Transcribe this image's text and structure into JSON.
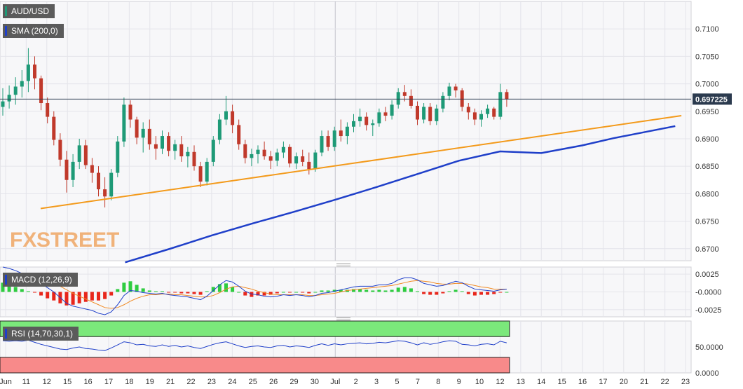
{
  "tags": {
    "symbol": "AUD/USD",
    "sma": "SMA (200,0)",
    "macd": "MACD (12,26,9)",
    "rsi": "RSI (14,70,30,1)"
  },
  "watermark": {
    "part1": "FX",
    "part2": "STREET"
  },
  "colors": {
    "background": "#f7f7f9",
    "bull": "#1e9a77",
    "bear": "#c0392b",
    "sma": "#1f3fc9",
    "trendline": "#f39a1b",
    "macd_line": "#1f3fc9",
    "signal_line": "#f08a24",
    "hist_pos": "#2ecc40",
    "hist_neg": "#e8261b",
    "rsi_line": "#1f3fc9",
    "rsi_overbought": "#7be87b",
    "rsi_oversold": "#f88a8a",
    "last_price_label": "#2b3a4e",
    "watermark": "#f0b27a"
  },
  "chart_data": [
    {
      "type": "candlestick",
      "title": "AUD/USD",
      "x_ticks": [
        "Jun",
        "11",
        "12",
        "15",
        "16",
        "17",
        "18",
        "19",
        "21",
        "22",
        "23",
        "24",
        "25",
        "26",
        "29",
        "30",
        "Jul",
        "2",
        "3",
        "5",
        "7",
        "8",
        "9",
        "10",
        "12",
        "13",
        "14",
        "15",
        "16",
        "17",
        "20",
        "21",
        "22",
        "23"
      ],
      "y_ticks": [
        "0.6700",
        "0.6750",
        "0.6800",
        "0.6850",
        "0.6900",
        "0.6950",
        "0.7000",
        "0.7050",
        "0.7100"
      ],
      "ylim": [
        0.6678,
        0.715
      ],
      "last_price": 0.69722,
      "last_price_label": "0.697225",
      "trendline": {
        "from": [
          1.7,
          0.6773
        ],
        "to": [
          32.8,
          0.6942
        ]
      },
      "sma_200": {
        "name": "SMA (200,0)",
        "points": [
          [
            5.8,
            0.6675
          ],
          [
            8,
            0.67
          ],
          [
            10,
            0.6724
          ],
          [
            12,
            0.6746
          ],
          [
            14,
            0.6767
          ],
          [
            16,
            0.6789
          ],
          [
            18,
            0.6812
          ],
          [
            20,
            0.6836
          ],
          [
            22,
            0.686
          ],
          [
            24,
            0.6877
          ],
          [
            26,
            0.6874
          ],
          [
            28,
            0.6888
          ],
          [
            29.5,
            0.6901
          ],
          [
            31,
            0.6912
          ],
          [
            32.5,
            0.6923
          ]
        ]
      },
      "candles": [
        [
          0.6958,
          0.6992,
          0.6942,
          0.6968
        ],
        [
          0.6968,
          0.6997,
          0.6955,
          0.698
        ],
        [
          0.698,
          0.7012,
          0.6962,
          0.6995
        ],
        [
          0.6995,
          0.7025,
          0.6975,
          0.7005
        ],
        [
          0.7005,
          0.7065,
          0.6985,
          0.7035
        ],
        [
          0.7035,
          0.705,
          0.699,
          0.701
        ],
        [
          0.701,
          0.7015,
          0.6952,
          0.6965
        ],
        [
          0.6965,
          0.6975,
          0.6928,
          0.694
        ],
        [
          0.694,
          0.695,
          0.6888,
          0.6898
        ],
        [
          0.6898,
          0.691,
          0.685,
          0.6862
        ],
        [
          0.6862,
          0.6878,
          0.6802,
          0.6825
        ],
        [
          0.6825,
          0.6872,
          0.6812,
          0.6858
        ],
        [
          0.6858,
          0.69,
          0.6845,
          0.6888
        ],
        [
          0.6888,
          0.6898,
          0.6845,
          0.6852
        ],
        [
          0.6852,
          0.6865,
          0.682,
          0.6838
        ],
        [
          0.6838,
          0.685,
          0.6795,
          0.6808
        ],
        [
          0.6808,
          0.683,
          0.6775,
          0.6795
        ],
        [
          0.6795,
          0.6845,
          0.6788,
          0.6838
        ],
        [
          0.6838,
          0.6905,
          0.683,
          0.6895
        ],
        [
          0.6895,
          0.6975,
          0.6885,
          0.6962
        ],
        [
          0.6962,
          0.697,
          0.692,
          0.6935
        ],
        [
          0.6935,
          0.694,
          0.689,
          0.6902
        ],
        [
          0.6902,
          0.693,
          0.6875,
          0.6918
        ],
        [
          0.6918,
          0.6935,
          0.688,
          0.689
        ],
        [
          0.689,
          0.6905,
          0.6862,
          0.6882
        ],
        [
          0.6882,
          0.6915,
          0.6872,
          0.6905
        ],
        [
          0.6905,
          0.6912,
          0.6868,
          0.6878
        ],
        [
          0.6878,
          0.6898,
          0.6862,
          0.689
        ],
        [
          0.689,
          0.6905,
          0.6858,
          0.6868
        ],
        [
          0.6868,
          0.6885,
          0.6848,
          0.6876
        ],
        [
          0.6876,
          0.6888,
          0.6842,
          0.685
        ],
        [
          0.685,
          0.6858,
          0.6812,
          0.6822
        ],
        [
          0.6822,
          0.6865,
          0.6815,
          0.6858
        ],
        [
          0.6858,
          0.6905,
          0.685,
          0.6898
        ],
        [
          0.6898,
          0.6945,
          0.689,
          0.6935
        ],
        [
          0.6935,
          0.6978,
          0.6925,
          0.695
        ],
        [
          0.695,
          0.6962,
          0.691,
          0.6925
        ],
        [
          0.6925,
          0.6935,
          0.688,
          0.689
        ],
        [
          0.689,
          0.6898,
          0.6855,
          0.6865
        ],
        [
          0.6865,
          0.6882,
          0.685,
          0.6872
        ],
        [
          0.6872,
          0.6888,
          0.6855,
          0.688
        ],
        [
          0.688,
          0.6895,
          0.6862,
          0.6868
        ],
        [
          0.6868,
          0.6878,
          0.6845,
          0.686
        ],
        [
          0.686,
          0.6882,
          0.685,
          0.6875
        ],
        [
          0.6875,
          0.6895,
          0.6865,
          0.6885
        ],
        [
          0.6885,
          0.689,
          0.6848,
          0.6855
        ],
        [
          0.6855,
          0.6875,
          0.6845,
          0.6868
        ],
        [
          0.6868,
          0.688,
          0.685,
          0.6858
        ],
        [
          0.6858,
          0.6875,
          0.6835,
          0.6845
        ],
        [
          0.6845,
          0.688,
          0.684,
          0.6875
        ],
        [
          0.6875,
          0.6915,
          0.6868,
          0.6905
        ],
        [
          0.6905,
          0.6915,
          0.6878,
          0.6885
        ],
        [
          0.6885,
          0.6922,
          0.6878,
          0.6915
        ],
        [
          0.6915,
          0.6935,
          0.6895,
          0.6905
        ],
        [
          0.6905,
          0.693,
          0.689,
          0.6922
        ],
        [
          0.6922,
          0.6945,
          0.6912,
          0.6932
        ],
        [
          0.6932,
          0.6955,
          0.6922,
          0.694
        ],
        [
          0.694,
          0.6948,
          0.6915,
          0.6925
        ],
        [
          0.6925,
          0.6935,
          0.6905,
          0.6928
        ],
        [
          0.6928,
          0.6955,
          0.6922,
          0.6948
        ],
        [
          0.6948,
          0.6958,
          0.6932,
          0.6942
        ],
        [
          0.6942,
          0.697,
          0.6935,
          0.6962
        ],
        [
          0.6962,
          0.6992,
          0.6955,
          0.6985
        ],
        [
          0.6985,
          0.6998,
          0.6968,
          0.6978
        ],
        [
          0.6978,
          0.699,
          0.6955,
          0.696
        ],
        [
          0.696,
          0.6968,
          0.6925,
          0.6935
        ],
        [
          0.6935,
          0.6965,
          0.6928,
          0.6958
        ],
        [
          0.6958,
          0.6965,
          0.6925,
          0.6932
        ],
        [
          0.6932,
          0.6962,
          0.6925,
          0.6955
        ],
        [
          0.6955,
          0.6985,
          0.6948,
          0.6978
        ],
        [
          0.6978,
          0.7002,
          0.697,
          0.6995
        ],
        [
          0.6995,
          0.7,
          0.6975,
          0.6988
        ],
        [
          0.6988,
          0.6992,
          0.695,
          0.6958
        ],
        [
          0.6958,
          0.6965,
          0.6935,
          0.6948
        ],
        [
          0.6948,
          0.6955,
          0.6925,
          0.6935
        ],
        [
          0.6935,
          0.6952,
          0.6922,
          0.6945
        ],
        [
          0.6945,
          0.6962,
          0.6938,
          0.6955
        ],
        [
          0.6955,
          0.6958,
          0.6935,
          0.694
        ],
        [
          0.694,
          0.7,
          0.6935,
          0.6985
        ],
        [
          0.6985,
          0.699,
          0.6958,
          0.6972
        ]
      ]
    },
    {
      "type": "line",
      "title": "MACD (12,26,9)",
      "y_ticks": [
        "0.0025",
        "-0.0000",
        "-0.0025"
      ],
      "ylim": [
        -0.0035,
        0.0035
      ],
      "macd": [
        0.0035,
        0.0033,
        0.003,
        0.0026,
        0.0022,
        0.0018,
        0.0012,
        0.0006,
        0.0,
        -0.0008,
        -0.0016,
        -0.002,
        -0.0022,
        -0.0024,
        -0.0026,
        -0.003,
        -0.0032,
        -0.0028,
        -0.0018,
        -0.0005,
        0.0002,
        0.0001,
        -0.0001,
        -0.0002,
        -0.0003,
        -0.0002,
        -0.0004,
        -0.0005,
        -0.0006,
        -0.0007,
        -0.0009,
        -0.0011,
        -0.0006,
        0.0002,
        0.001,
        0.0016,
        0.0014,
        0.0008,
        0.0001,
        -0.0003,
        -0.0004,
        -0.0006,
        -0.0007,
        -0.0006,
        -0.0004,
        -0.0005,
        -0.0004,
        -0.0005,
        -0.0007,
        -0.0005,
        -0.0002,
        -0.0001,
        0.0001,
        0.0003,
        0.0005,
        0.0007,
        0.0008,
        0.0008,
        0.0008,
        0.001,
        0.001,
        0.0012,
        0.0017,
        0.002,
        0.002,
        0.0017,
        0.0012,
        0.001,
        0.0008,
        0.0009,
        0.0012,
        0.0015,
        0.0013,
        0.0008,
        0.0004,
        0.0003,
        0.0002,
        0.0001,
        0.0003,
        0.0004
      ],
      "signal": [
        0.0022,
        0.0023,
        0.0023,
        0.0022,
        0.0021,
        0.0019,
        0.0017,
        0.0015,
        0.0012,
        0.0008,
        0.0003,
        -0.0002,
        -0.0006,
        -0.001,
        -0.0014,
        -0.0018,
        -0.0022,
        -0.0023,
        -0.0022,
        -0.0018,
        -0.0013,
        -0.0009,
        -0.0006,
        -0.0004,
        -0.0004,
        -0.0003,
        -0.0003,
        -0.0004,
        -0.0004,
        -0.0005,
        -0.0006,
        -0.0007,
        -0.0007,
        -0.0005,
        -0.0001,
        0.0004,
        0.0007,
        0.0008,
        0.0006,
        0.0004,
        0.0001,
        -0.0001,
        -0.0003,
        -0.0004,
        -0.0004,
        -0.0004,
        -0.0004,
        -0.0004,
        -0.0005,
        -0.0005,
        -0.0004,
        -0.0003,
        -0.0002,
        0.0,
        0.0002,
        0.0003,
        0.0004,
        0.0005,
        0.0006,
        0.0007,
        0.0008,
        0.0009,
        0.0011,
        0.0013,
        0.0015,
        0.0016,
        0.0015,
        0.0014,
        0.0012,
        0.0011,
        0.0011,
        0.0012,
        0.0012,
        0.0011,
        0.0009,
        0.0007,
        0.0006,
        0.0004,
        0.0004,
        0.0004
      ]
    },
    {
      "type": "line",
      "title": "RSI (14,70,30,1)",
      "y_ticks": [
        "50.0000",
        "0.0000"
      ],
      "ylim": [
        0,
        100
      ],
      "overbought": 70,
      "oversold": 30,
      "rsi": [
        62,
        61,
        62,
        61,
        63,
        59,
        55,
        52,
        49,
        46,
        45,
        48,
        50,
        47,
        46,
        44,
        43,
        48,
        54,
        60,
        58,
        54,
        55,
        52,
        51,
        54,
        51,
        53,
        50,
        52,
        49,
        47,
        51,
        55,
        58,
        60,
        56,
        52,
        49,
        51,
        52,
        50,
        49,
        52,
        53,
        50,
        52,
        51,
        49,
        53,
        56,
        53,
        56,
        54,
        56,
        57,
        58,
        56,
        57,
        59,
        58,
        60,
        62,
        61,
        58,
        54,
        58,
        55,
        57,
        60,
        62,
        61,
        55,
        54,
        52,
        55,
        56,
        54,
        61,
        58
      ]
    }
  ]
}
